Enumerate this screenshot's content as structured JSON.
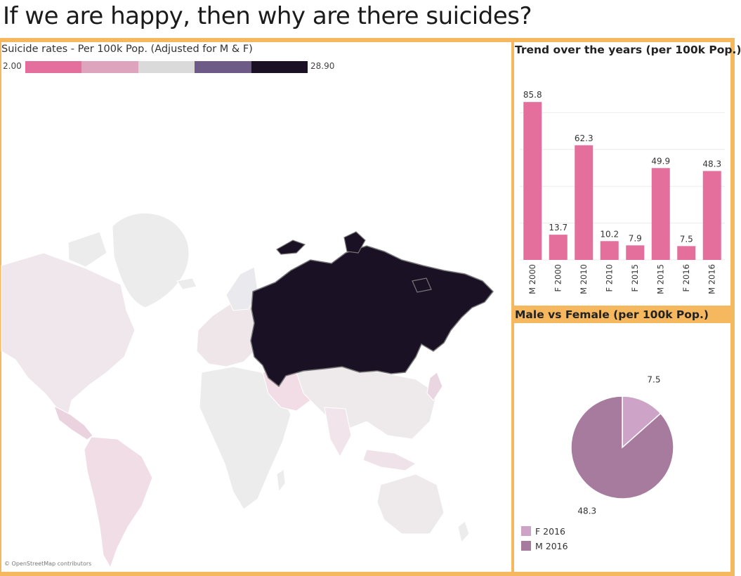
{
  "page": {
    "title": "If we are happy, then why are there suicides?"
  },
  "map": {
    "title": "Suicide rates - Per 100k Pop. (Adjusted for M & F)",
    "legend_min": "2.00",
    "legend_max": "28.90",
    "legend_colors": [
      "#e56f9c",
      "#dea3bd",
      "#dadada",
      "#6e5a86",
      "#1b1124"
    ],
    "highlight_country": "Russia",
    "credit": "© OpenStreetMap contributors"
  },
  "chart_data": [
    {
      "type": "bar",
      "title": "Trend over the years (per 100k Pop.)",
      "categories": [
        "M 2000",
        "F 2000",
        "M 2010",
        "F 2010",
        "F 2015",
        "M 2015",
        "F 2016",
        "M 2016"
      ],
      "values": [
        85.8,
        13.7,
        62.3,
        10.2,
        7.9,
        49.9,
        7.5,
        48.3
      ],
      "labels": [
        "85.8",
        "13.7",
        "62.3",
        "10.2",
        "7.9",
        "49.9",
        "7.5",
        "48.3"
      ],
      "ylim": [
        0,
        100
      ],
      "grid": true,
      "color": "#e56f9c"
    },
    {
      "type": "pie",
      "title": "Male vs Female (per 100k Pop.)",
      "categories": [
        "F 2016",
        "M 2016"
      ],
      "values": [
        7.5,
        48.3
      ],
      "labels": [
        "7.5",
        "48.3"
      ],
      "colors": [
        "#cda4c7",
        "#a77b9e"
      ],
      "legend": "bottom-left"
    }
  ]
}
